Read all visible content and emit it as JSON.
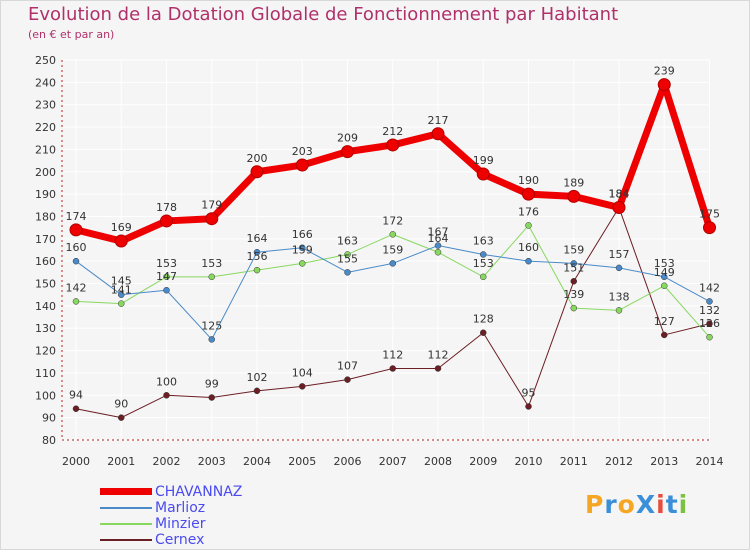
{
  "title": "Evolution de la Dotation Globale de Fonctionnement par Habitant",
  "subtitle": "(en € et par an)",
  "logo": {
    "text": "ProXiti",
    "letters": [
      "P",
      "r",
      "o",
      "X",
      "i",
      "t",
      "i"
    ],
    "colors": [
      "#f5a623",
      "#3a8fd8",
      "#f5a623",
      "#3a8fd8",
      "#e84c3d",
      "#3a8fd8",
      "#7cc242"
    ]
  },
  "colors": {
    "background": "#f5f5f5",
    "grid": "#ffffff",
    "title": "#b0306a",
    "legend_text": "#4a4af0"
  },
  "chart_data": {
    "type": "line",
    "title": "Evolution de la Dotation Globale de Fonctionnement par Habitant",
    "subtitle": "(en € et par an)",
    "xlabel": "",
    "ylabel": "",
    "x": [
      "2000",
      "2001",
      "2002",
      "2003",
      "2004",
      "2005",
      "2006",
      "2007",
      "2008",
      "2009",
      "2010",
      "2011",
      "2012",
      "2013",
      "2014"
    ],
    "ylim": [
      80,
      250
    ],
    "yticks": [
      "80",
      "90",
      "100",
      "110",
      "120",
      "130",
      "140",
      "150",
      "160",
      "170",
      "180",
      "190",
      "200",
      "210",
      "220",
      "230",
      "240",
      "250"
    ],
    "legend_position": "bottom-left",
    "series": [
      {
        "name": "Cernex",
        "color": "#6b1e24",
        "width": 1,
        "marker": 3,
        "values": [
          94,
          90,
          100,
          99,
          102,
          104,
          107,
          112,
          112,
          128,
          95,
          151,
          184,
          127,
          132
        ],
        "labels": [
          "94",
          "90",
          "100",
          "99",
          "102",
          "104",
          "107",
          "112",
          "112",
          "128",
          "95",
          "151",
          "184",
          "127",
          "132"
        ]
      },
      {
        "name": "Minzier",
        "color": "#88d860",
        "width": 1,
        "marker": 3,
        "values": [
          142,
          141,
          153,
          153,
          156,
          159,
          163,
          172,
          164,
          153,
          176,
          139,
          138,
          149,
          126
        ],
        "labels": [
          "142",
          "141",
          "153",
          "153",
          "156",
          "159",
          "163",
          "172",
          "164",
          "153",
          "176",
          "139",
          "138",
          "149",
          "126"
        ]
      },
      {
        "name": "Marlioz",
        "color": "#4a8ac8",
        "width": 1,
        "marker": 3,
        "values": [
          160,
          145,
          147,
          125,
          164,
          166,
          155,
          159,
          167,
          163,
          160,
          159,
          157,
          153,
          142
        ],
        "labels": [
          "160",
          "145",
          "147",
          "125",
          "164",
          "166",
          "155",
          "159",
          "167",
          "163",
          "160",
          "159",
          "157",
          "153",
          "142"
        ]
      },
      {
        "name": "CHAVANNAZ",
        "color": "#ee0000",
        "width": 7,
        "marker": 6,
        "values": [
          174,
          169,
          178,
          179,
          200,
          203,
          209,
          212,
          217,
          199,
          190,
          189,
          184,
          239,
          175
        ],
        "labels": [
          "174",
          "169",
          "178",
          "179",
          "200",
          "203",
          "209",
          "212",
          "217",
          "199",
          "190",
          "189",
          "184",
          "239",
          "175"
        ]
      }
    ]
  },
  "legend": [
    {
      "name": "CHAVANNAZ",
      "color": "#ee0000",
      "thickness": 7
    },
    {
      "name": "Marlioz",
      "color": "#4a8ac8",
      "thickness": 2
    },
    {
      "name": "Minzier",
      "color": "#88d860",
      "thickness": 2
    },
    {
      "name": "Cernex",
      "color": "#6b1e24",
      "thickness": 2
    }
  ]
}
